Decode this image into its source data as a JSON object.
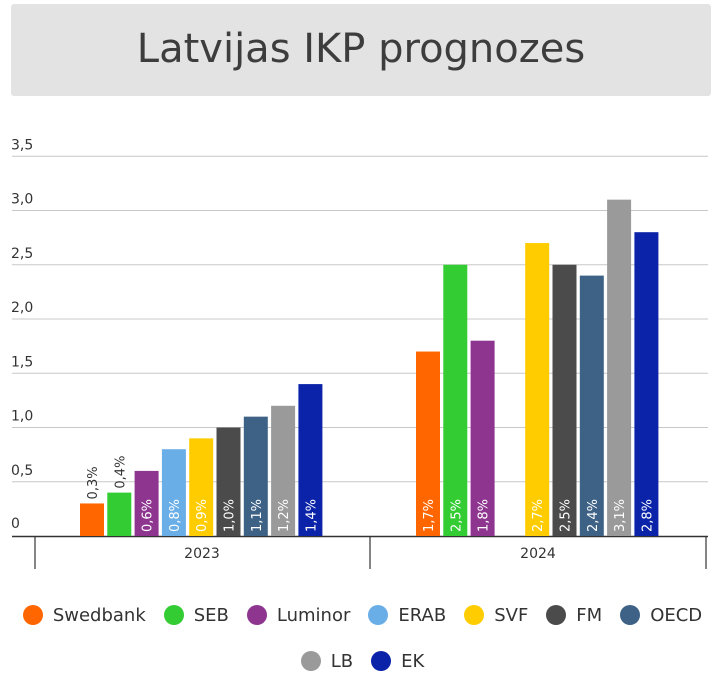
{
  "title": "Latvijas IKP prognozes",
  "chart_data": {
    "type": "bar",
    "categories": [
      "2023",
      "2024"
    ],
    "ylim": [
      0,
      3.5
    ],
    "yticks": [
      "0",
      "0,5",
      "1,0",
      "1,5",
      "2,0",
      "2,5",
      "3,0",
      "3,5"
    ],
    "grid": true,
    "legend_position": "bottom",
    "series": [
      {
        "name": "Swedbank",
        "color": "#ff6600",
        "values": [
          0.3,
          1.7
        ],
        "labels": [
          "0,3%",
          "1,7%"
        ]
      },
      {
        "name": "SEB",
        "color": "#33cc33",
        "values": [
          0.4,
          2.5
        ],
        "labels": [
          "0,4%",
          "2,5%"
        ]
      },
      {
        "name": "Luminor",
        "color": "#8e3590",
        "values": [
          0.6,
          1.8
        ],
        "labels": [
          "0,6%",
          "1,8%"
        ]
      },
      {
        "name": "ERAB",
        "color": "#6aaee8",
        "values": [
          0.8,
          null
        ],
        "labels": [
          "0,8%",
          ""
        ]
      },
      {
        "name": "SVF",
        "color": "#ffcc00",
        "values": [
          0.9,
          2.7
        ],
        "labels": [
          "0,9%",
          "2,7%"
        ]
      },
      {
        "name": "FM",
        "color": "#4b4b4b",
        "values": [
          1.0,
          2.5
        ],
        "labels": [
          "1,0%",
          "2,5%"
        ]
      },
      {
        "name": "OECD",
        "color": "#3e6286",
        "values": [
          1.1,
          2.4
        ],
        "labels": [
          "1,1%",
          "2,4%"
        ]
      },
      {
        "name": "LB",
        "color": "#9a9a9a",
        "values": [
          1.2,
          3.1
        ],
        "labels": [
          "1,2%",
          "3,1%"
        ]
      },
      {
        "name": "EK",
        "color": "#0a23a8",
        "values": [
          1.4,
          2.8
        ],
        "labels": [
          "1,4%",
          "2,8%"
        ]
      }
    ]
  }
}
